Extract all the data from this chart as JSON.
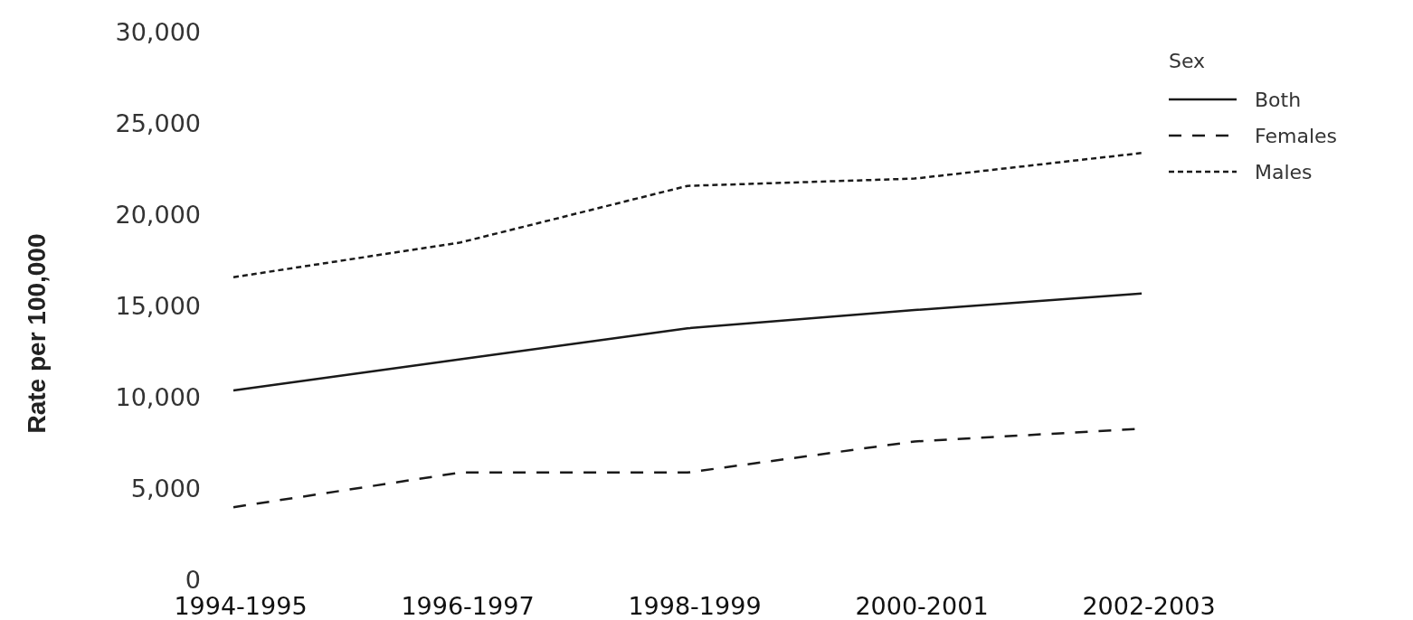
{
  "chart_data": {
    "type": "line",
    "ylabel": "Rate per 100,000",
    "legend_title": "Sex",
    "legend": "top right",
    "categories": [
      "1994-1995",
      "1996-1997",
      "1998-1999",
      "2000-2001",
      "2002-2003"
    ],
    "ylim": [
      0,
      30000
    ],
    "yticks": [
      {
        "value": 0,
        "label": "0"
      },
      {
        "value": 5000,
        "label": "5,000"
      },
      {
        "value": 10000,
        "label": "10,000"
      },
      {
        "value": 15000,
        "label": "15,000"
      },
      {
        "value": 20000,
        "label": "20,000"
      },
      {
        "value": 25000,
        "label": "25,000"
      },
      {
        "value": 30000,
        "label": "30,000"
      }
    ],
    "grid": false,
    "marker": "none",
    "series": [
      {
        "name": "Both",
        "color": "#1a1a1a",
        "line_style": "solid",
        "values": [
          10400,
          12100,
          13800,
          14800,
          15700
        ]
      },
      {
        "name": "Females",
        "color": "#1a1a1a",
        "line_style": "dashed",
        "values": [
          4000,
          5900,
          5900,
          7600,
          8300
        ]
      },
      {
        "name": "Males",
        "color": "#1a1a1a",
        "line_style": "dotted",
        "values": [
          16600,
          18500,
          21600,
          22000,
          23400
        ]
      }
    ]
  }
}
